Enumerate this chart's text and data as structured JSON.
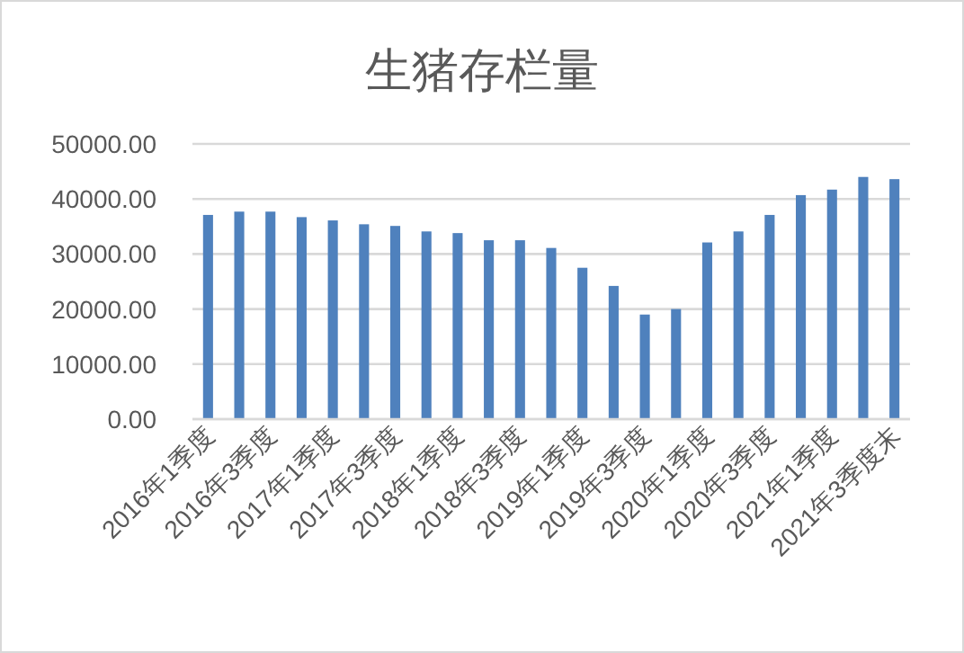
{
  "chart_data": {
    "type": "bar",
    "title": "生猪存栏量",
    "categories": [
      "2016年1季度",
      null,
      "2016年3季度",
      null,
      "2017年1季度",
      null,
      "2017年3季度",
      null,
      "2018年1季度",
      null,
      "2018年3季度",
      null,
      "2019年1季度",
      null,
      "2019年3季度",
      null,
      "2020年1季度",
      null,
      "2020年3季度",
      null,
      "2021年1季度",
      null,
      "2021年3季度末"
    ],
    "values": [
      37100,
      37700,
      37700,
      36700,
      36100,
      35400,
      35100,
      34100,
      33800,
      32500,
      32500,
      31100,
      27500,
      24200,
      19000,
      20000,
      32100,
      34100,
      37100,
      40700,
      41700,
      44000,
      43600
    ],
    "color": "#4f81bd",
    "ylim": [
      0,
      50000
    ],
    "yticks": [
      {
        "value": 0,
        "label": "0.00"
      },
      {
        "value": 10000,
        "label": "10000.00"
      },
      {
        "value": 20000,
        "label": "20000.00"
      },
      {
        "value": 30000,
        "label": "30000.00"
      },
      {
        "value": 40000,
        "label": "40000.00"
      },
      {
        "value": 50000,
        "label": "50000.00"
      }
    ],
    "grid": "y"
  }
}
